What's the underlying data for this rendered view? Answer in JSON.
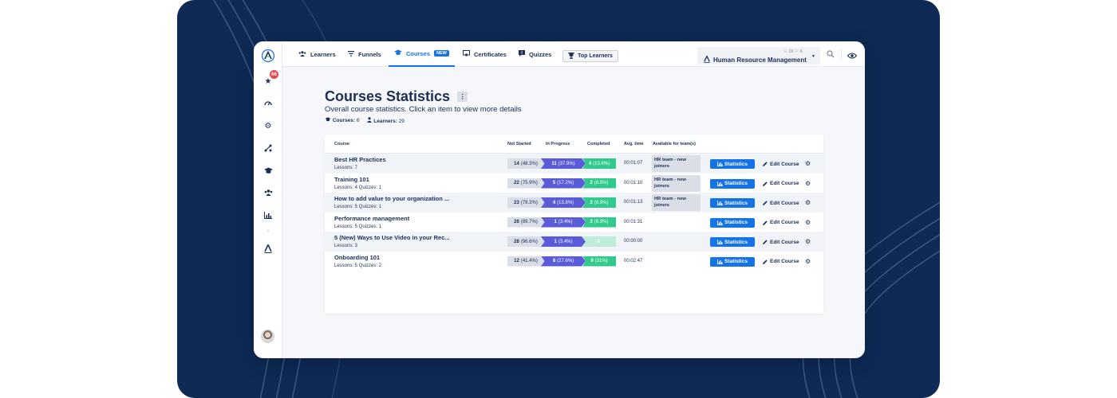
{
  "nav": {
    "tabs": [
      {
        "label": "Learners",
        "icon": "users-icon"
      },
      {
        "label": "Funnels",
        "icon": "filter-icon"
      },
      {
        "label": "Courses",
        "icon": "graduation-cap-icon",
        "badge": "NEW"
      },
      {
        "label": "Certificates",
        "icon": "certificate-icon"
      },
      {
        "label": "Quizzes",
        "icon": "quiz-icon"
      }
    ],
    "top_learners": "Top Learners",
    "active_tab": "Courses"
  },
  "org": {
    "name": "Human Resource Management",
    "counts": "⚇ 29  ⚐ 6"
  },
  "sidebar": {
    "badge": "66"
  },
  "page": {
    "title": "Courses Statistics",
    "menu_label": "⋮",
    "subtitle": "Overall course statistics. Click an item to view more details",
    "courses_label": "Courses:",
    "courses_count": "6",
    "learners_label": "Learners:",
    "learners_count": "29"
  },
  "table": {
    "headers": {
      "course": "Course",
      "not_started": "Not Started",
      "in_progress": "In Progress",
      "completed": "Completed",
      "avg_time": "Avg. time",
      "teams": "Available for team(s)"
    },
    "stats_label": "Statistics",
    "edit_label": "Edit Course",
    "rows": [
      {
        "name": "Best HR Practices",
        "meta": "Lessons: 7",
        "ns_n": "14",
        "ns_p": "(48.3%)",
        "ip_n": "11",
        "ip_p": "(37.9%)",
        "cp_n": "4",
        "cp_p": "(13.8%)",
        "time": "00:01:07",
        "team": "HR team - new joiners"
      },
      {
        "name": "Training 101",
        "meta": "Lessons: 4  Quizzes: 1",
        "ns_n": "22",
        "ns_p": "(75.9%)",
        "ip_n": "5",
        "ip_p": "(17.2%)",
        "cp_n": "2",
        "cp_p": "(6.9%)",
        "time": "00:01:10",
        "team": "HR team - new joiners"
      },
      {
        "name": "How to add value to your organization ...",
        "meta": "Lessons: 5  Quizzes: 1",
        "ns_n": "23",
        "ns_p": "(79.3%)",
        "ip_n": "4",
        "ip_p": "(13.8%)",
        "cp_n": "2",
        "cp_p": "(6.9%)",
        "time": "00:01:13",
        "team": "HR team - new joiners"
      },
      {
        "name": "Performance management",
        "meta": "Lessons: 5  Quizzes: 1",
        "ns_n": "26",
        "ns_p": "(89.7%)",
        "ip_n": "1",
        "ip_p": "(3.4%)",
        "cp_n": "2",
        "cp_p": "(6.9%)",
        "time": "00:01:31",
        "team": ""
      },
      {
        "name": "5 (New) Ways to Use Video in your Rec...",
        "meta": "Lessons: 3",
        "ns_n": "28",
        "ns_p": "(96.6%)",
        "ip_n": "1",
        "ip_p": "(3.4%)",
        "cp_n": "0",
        "cp_p": "",
        "time": "00:00:00",
        "team": ""
      },
      {
        "name": "Onboarding 101",
        "meta": "Lessons: 5  Quizzes: 2",
        "ns_n": "12",
        "ns_p": "(41.4%)",
        "ip_n": "8",
        "ip_p": "(27.6%)",
        "cp_n": "9",
        "cp_p": "(31%)",
        "time": "00:02:47",
        "team": ""
      }
    ]
  },
  "colors": {
    "brand": "#1473e6",
    "navy": "#0e2a55",
    "text": "#1b2f57",
    "in_progress": "#5a5bd8",
    "completed": "#2fca8c",
    "not_started": "#d9dee7"
  }
}
